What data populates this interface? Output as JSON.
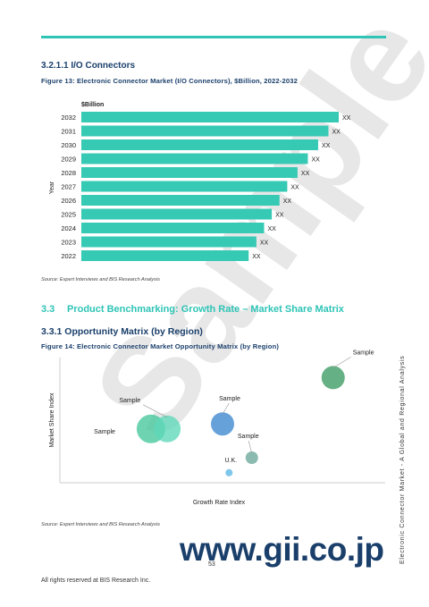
{
  "section_heading": "3.2.1.1 I/O Connectors",
  "figure13": {
    "caption": "Figure 13: Electronic Connector Market (I/O Connectors), $Billion, 2022-2032",
    "unit_label": "$Billion",
    "y_axis_title": "Year",
    "source": "Source: Expert Interviews and BIS Research Analysis"
  },
  "section_3_3": {
    "number": "3.3",
    "title": "Product Benchmarking: Growth Rate – Market Share Matrix"
  },
  "section_3_3_1": "3.3.1 Opportunity Matrix (by Region)",
  "figure14": {
    "caption": "Figure 14: Electronic Connector Market Opportunity Matrix (by Region)",
    "x_axis_title": "Growth Rate Index",
    "y_axis_title": "Market Share Index",
    "source": "Source: Expert Interviews and BIS Research Analysis"
  },
  "watermark": "Sample",
  "page_number": "53",
  "footer": "All rights reserved at BIS Research Inc.",
  "side_text": "Electronic Connector Market - A Global and Regional Analysis",
  "brand": "www.gii.co.jp",
  "colors": {
    "accent": "#2ec4b6",
    "heading": "#1a3f6b"
  },
  "chart_data": [
    {
      "type": "bar",
      "orientation": "horizontal",
      "categories": [
        "2032",
        "2031",
        "2030",
        "2029",
        "2028",
        "2027",
        "2026",
        "2025",
        "2024",
        "2023",
        "2022"
      ],
      "values": [
        100,
        96,
        92,
        88,
        84,
        80,
        77,
        74,
        71,
        68,
        65
      ],
      "data_labels": [
        "XX",
        "XX",
        "XX",
        "XX",
        "XX",
        "XX",
        "XX",
        "XX",
        "XX",
        "XX",
        "XX"
      ],
      "ylabel": "Year",
      "bar_color": "#36c9b4"
    },
    {
      "type": "scatter",
      "xlabel": "Growth Rate Index",
      "ylabel": "Market Share Index",
      "xlim": [
        0,
        100
      ],
      "ylim": [
        0,
        100
      ],
      "points": [
        {
          "label": "Sample",
          "x": 84,
          "y": 84,
          "size": 13,
          "color": "#3a9a62"
        },
        {
          "label": "Sample",
          "x": 50,
          "y": 47,
          "size": 13,
          "color": "#3b86d0"
        },
        {
          "label": "Sample",
          "x": 59,
          "y": 20,
          "size": 7,
          "color": "#6aa89a"
        },
        {
          "label": "U.K.",
          "x": 52,
          "y": 8,
          "size": 4,
          "color": "#5bb6e6"
        },
        {
          "label": "Sample",
          "x": 28,
          "y": 43,
          "size": 16,
          "color": "#44c79a"
        },
        {
          "label": "Sample",
          "x": 33,
          "y": 43,
          "size": 15,
          "color": "#5ed8b8"
        }
      ]
    }
  ]
}
